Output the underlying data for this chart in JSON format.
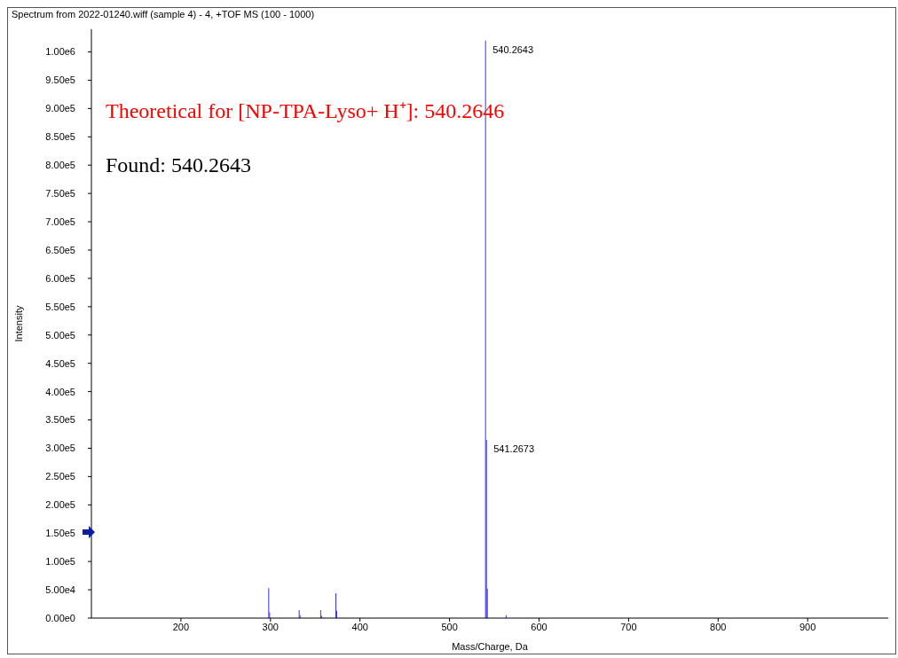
{
  "chart_data": {
    "type": "bar",
    "title": "Spectrum from 2022-01240.wiff (sample 4) - 4, +TOF MS (100 - 1000)",
    "xlabel": "Mass/Charge, Da",
    "ylabel": "Intensity",
    "x": [
      298.1,
      299.1,
      332.1,
      333.1,
      356.1,
      357.1,
      373.1,
      374.1,
      540.2643,
      541.2673,
      542.27,
      563.2
    ],
    "values": [
      53000,
      10000,
      14000,
      5000,
      14000,
      4000,
      44000,
      13000,
      1020000,
      315000,
      52000,
      5000
    ],
    "color": "#1f1fff",
    "xlim": [
      100,
      990
    ],
    "xticks": [
      200,
      300,
      400,
      500,
      600,
      700,
      800,
      900
    ],
    "ylim": [
      0,
      1040000
    ],
    "yticks": [
      {
        "value": 0,
        "label": "0.00e0"
      },
      {
        "value": 50000,
        "label": "5.00e4"
      },
      {
        "value": 100000,
        "label": "1.00e5"
      },
      {
        "value": 150000,
        "label": "1.50e5"
      },
      {
        "value": 200000,
        "label": "2.00e5"
      },
      {
        "value": 250000,
        "label": "2.50e5"
      },
      {
        "value": 300000,
        "label": "3.00e5"
      },
      {
        "value": 350000,
        "label": "3.50e5"
      },
      {
        "value": 400000,
        "label": "4.00e5"
      },
      {
        "value": 450000,
        "label": "4.50e5"
      },
      {
        "value": 500000,
        "label": "5.00e5"
      },
      {
        "value": 550000,
        "label": "5.50e5"
      },
      {
        "value": 600000,
        "label": "6.00e5"
      },
      {
        "value": 650000,
        "label": "6.50e5"
      },
      {
        "value": 700000,
        "label": "7.00e5"
      },
      {
        "value": 750000,
        "label": "7.50e5"
      },
      {
        "value": 800000,
        "label": "8.00e5"
      },
      {
        "value": 850000,
        "label": "8.50e5"
      },
      {
        "value": 900000,
        "label": "9.00e5"
      },
      {
        "value": 950000,
        "label": "9.50e5"
      },
      {
        "value": 1000000,
        "label": "1.00e6"
      }
    ],
    "annotations": [
      {
        "text": "540.2643",
        "x": 540.2643,
        "y": 1020000
      },
      {
        "text": "541.2673",
        "x": 541.2673,
        "y": 315000
      },
      "Theoretical for [NP-TPA-Lyso+ H⁺]: 540.2646",
      "Found: 540.2643"
    ],
    "grid": false,
    "legend": false
  }
}
